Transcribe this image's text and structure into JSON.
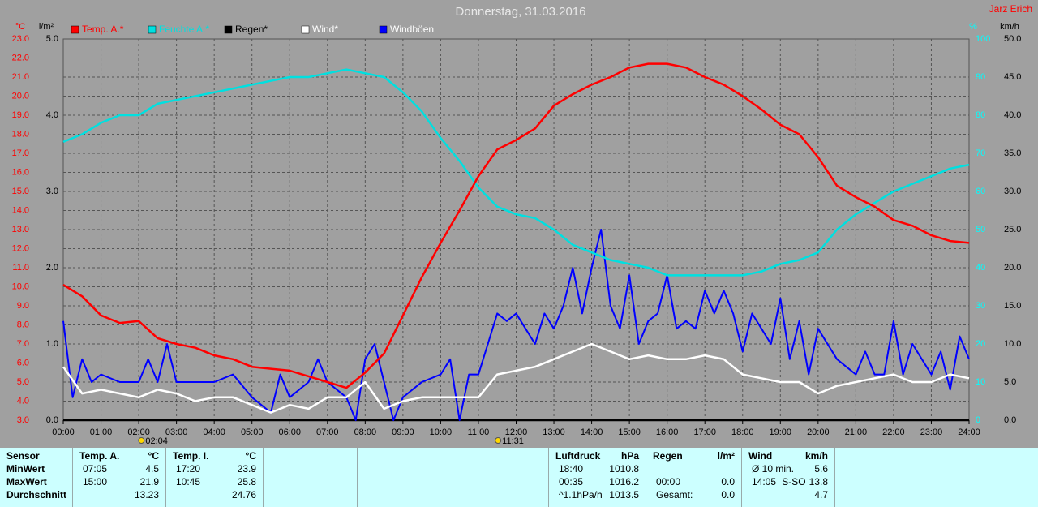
{
  "chart_data": {
    "type": "line",
    "title": "Donnerstag, 31.03.2016",
    "author": "Jarz Erich",
    "xlim": [
      0,
      24
    ],
    "xticks": [
      {
        "value": 0,
        "label": "00:00"
      },
      {
        "value": 1,
        "label": "01:00"
      },
      {
        "value": 2,
        "label": "02:00"
      },
      {
        "value": 3,
        "label": "03:00"
      },
      {
        "value": 4,
        "label": "04:00"
      },
      {
        "value": 5,
        "label": "05:00"
      },
      {
        "value": 6,
        "label": "06:00"
      },
      {
        "value": 7,
        "label": "07:00"
      },
      {
        "value": 8,
        "label": "08:00"
      },
      {
        "value": 9,
        "label": "09:00"
      },
      {
        "value": 10,
        "label": "10:00"
      },
      {
        "value": 11,
        "label": "11:00"
      },
      {
        "value": 12,
        "label": "12:00"
      },
      {
        "value": 13,
        "label": "13:00"
      },
      {
        "value": 14,
        "label": "14:00"
      },
      {
        "value": 15,
        "label": "15:00"
      },
      {
        "value": 16,
        "label": "16:00"
      },
      {
        "value": 17,
        "label": "17:00"
      },
      {
        "value": 18,
        "label": "18:00"
      },
      {
        "value": 19,
        "label": "19:00"
      },
      {
        "value": 20,
        "label": "20:00"
      },
      {
        "value": 21,
        "label": "21:00"
      },
      {
        "value": 22,
        "label": "22:00"
      },
      {
        "value": 23,
        "label": "23:00"
      },
      {
        "value": 24,
        "label": "24:00"
      }
    ],
    "grid": true,
    "annotations": [
      {
        "x": 2.07,
        "label": "02:04"
      },
      {
        "x": 11.52,
        "label": "11:31"
      }
    ],
    "axes": [
      {
        "unit": "°C",
        "side": "left",
        "color": "#ff0000",
        "lim": [
          3,
          23
        ],
        "grid": true,
        "ticks": [
          {
            "value": 3,
            "label": "3.0"
          },
          {
            "value": 4,
            "label": "4.0"
          },
          {
            "value": 5,
            "label": "5.0"
          },
          {
            "value": 6,
            "label": "6.0"
          },
          {
            "value": 7,
            "label": "7.0"
          },
          {
            "value": 8,
            "label": "8.0"
          },
          {
            "value": 9,
            "label": "9.0"
          },
          {
            "value": 10,
            "label": "10.0"
          },
          {
            "value": 11,
            "label": "11.0"
          },
          {
            "value": 12,
            "label": "12.0"
          },
          {
            "value": 13,
            "label": "13.0"
          },
          {
            "value": 14,
            "label": "14.0"
          },
          {
            "value": 15,
            "label": "15.0"
          },
          {
            "value": 16,
            "label": "16.0"
          },
          {
            "value": 17,
            "label": "17.0"
          },
          {
            "value": 18,
            "label": "18.0"
          },
          {
            "value": 19,
            "label": "19.0"
          },
          {
            "value": 20,
            "label": "20.0"
          },
          {
            "value": 21,
            "label": "21.0"
          },
          {
            "value": 22,
            "label": "22.0"
          },
          {
            "value": 23,
            "label": "23.0"
          }
        ]
      },
      {
        "unit": "l/m²",
        "side": "left",
        "color": "#000000",
        "lim": [
          0,
          5
        ],
        "grid": false,
        "ticks": [
          {
            "value": 0,
            "label": "0.0"
          },
          {
            "value": 1,
            "label": "1.0"
          },
          {
            "value": 2,
            "label": "2.0"
          },
          {
            "value": 3,
            "label": "3.0"
          },
          {
            "value": 4,
            "label": "4.0"
          },
          {
            "value": 5,
            "label": "5.0"
          }
        ]
      },
      {
        "unit": "%",
        "side": "right",
        "color": "#00ffff",
        "lim": [
          0,
          100
        ],
        "grid": false,
        "ticks": [
          0,
          10,
          20,
          30,
          40,
          50,
          60,
          70,
          80,
          90,
          100
        ]
      },
      {
        "unit": "km/h",
        "side": "right",
        "color": "#000000",
        "lim": [
          0,
          50
        ],
        "grid": false,
        "ticks": [
          {
            "value": 0,
            "label": "0.0"
          },
          {
            "value": 5,
            "label": "5.0"
          },
          {
            "value": 10,
            "label": "10.0"
          },
          {
            "value": 15,
            "label": "15.0"
          },
          {
            "value": 20,
            "label": "20.0"
          },
          {
            "value": 25,
            "label": "25.0"
          },
          {
            "value": 30,
            "label": "30.0"
          },
          {
            "value": 35,
            "label": "35.0"
          },
          {
            "value": 40,
            "label": "40.0"
          },
          {
            "value": 45,
            "label": "45.0"
          },
          {
            "value": 50,
            "label": "50.0"
          }
        ]
      }
    ],
    "series": [
      {
        "name": "Temp. A.*",
        "color": "#ff0000",
        "axis": 0,
        "x": [
          0,
          0.5,
          1,
          1.5,
          2,
          2.5,
          3,
          3.5,
          4,
          4.5,
          5,
          5.5,
          6,
          6.5,
          7,
          7.5,
          8,
          8.5,
          9,
          9.5,
          10,
          10.5,
          11,
          11.5,
          12,
          12.5,
          13,
          13.5,
          14,
          14.5,
          15,
          15.5,
          16,
          16.5,
          17,
          17.5,
          18,
          18.5,
          19,
          19.5,
          20,
          20.5,
          21,
          21.5,
          22,
          22.5,
          23,
          23.5,
          24
        ],
        "values": [
          10.1,
          9.5,
          8.5,
          8.1,
          8.2,
          7.3,
          7.0,
          6.8,
          6.4,
          6.2,
          5.8,
          5.7,
          5.6,
          5.3,
          5.0,
          4.7,
          5.5,
          6.5,
          8.5,
          10.5,
          12.3,
          14.0,
          15.8,
          17.2,
          17.7,
          18.3,
          19.5,
          20.1,
          20.6,
          21.0,
          21.5,
          21.7,
          21.7,
          21.5,
          21.0,
          20.6,
          20.0,
          19.3,
          18.5,
          18.0,
          16.8,
          15.3,
          14.7,
          14.2,
          13.5,
          13.2,
          12.7,
          12.4,
          12.3
        ]
      },
      {
        "name": "Feuchte A.*",
        "color": "#00e0e0",
        "axis": 2,
        "x": [
          0,
          0.5,
          1,
          1.5,
          2,
          2.5,
          3,
          3.5,
          4,
          4.5,
          5,
          5.5,
          6,
          6.5,
          7,
          7.5,
          8,
          8.5,
          9,
          9.5,
          10,
          10.5,
          11,
          11.5,
          12,
          12.5,
          13,
          13.5,
          14,
          14.5,
          15,
          15.5,
          16,
          16.5,
          17,
          17.5,
          18,
          18.5,
          19,
          19.5,
          20,
          20.5,
          21,
          21.5,
          22,
          22.5,
          23,
          23.5,
          24
        ],
        "values": [
          73,
          75,
          78,
          80,
          80,
          83,
          84,
          85,
          86,
          87,
          88,
          89,
          90,
          90,
          91,
          92,
          91,
          90,
          86,
          81,
          74,
          68,
          61,
          56,
          54,
          53,
          50,
          46,
          44,
          42,
          41,
          40,
          38,
          38,
          38,
          38,
          38,
          39,
          41,
          42,
          44,
          50,
          54,
          57,
          60,
          62,
          64,
          66,
          67
        ]
      },
      {
        "name": "Regen*",
        "color": "#000000",
        "axis": 1,
        "x": [
          0,
          24
        ],
        "values": [
          0,
          0
        ]
      },
      {
        "name": "Wind*",
        "color": "#ffffff",
        "axis": 3,
        "x": [
          0,
          0.5,
          1,
          1.5,
          2,
          2.5,
          3,
          3.5,
          4,
          4.5,
          5,
          5.5,
          6,
          6.5,
          7,
          7.5,
          8,
          8.5,
          9,
          9.5,
          10,
          10.5,
          11,
          11.5,
          12,
          12.5,
          13,
          13.5,
          14,
          14.5,
          15,
          15.5,
          16,
          16.5,
          17,
          17.5,
          18,
          18.5,
          19,
          19.5,
          20,
          20.5,
          21,
          21.5,
          22,
          22.5,
          23,
          23.5,
          24
        ],
        "values": [
          7,
          3.5,
          4,
          3.5,
          3,
          4,
          3.5,
          2.5,
          3,
          3,
          2,
          1,
          2,
          1.5,
          3,
          3,
          5,
          1.5,
          2.5,
          3,
          3,
          3,
          3,
          6,
          6.5,
          7,
          8,
          9,
          10,
          9,
          8,
          8.5,
          8,
          8,
          8.5,
          8,
          6,
          5.5,
          5,
          5,
          3.5,
          4.5,
          5,
          5.5,
          6,
          5,
          5,
          6,
          5.5
        ]
      },
      {
        "name": "Windböen",
        "color": "#0000ff",
        "axis": 3,
        "x": [
          0,
          0.25,
          0.5,
          0.75,
          1,
          1.5,
          2,
          2.25,
          2.5,
          2.75,
          3,
          3.5,
          4,
          4.5,
          5,
          5.5,
          5.75,
          6,
          6.5,
          6.75,
          7,
          7.5,
          7.75,
          8,
          8.25,
          8.5,
          8.75,
          9,
          9.5,
          10,
          10.25,
          10.5,
          10.75,
          11,
          11.25,
          11.5,
          11.75,
          12,
          12.25,
          12.5,
          12.75,
          13,
          13.25,
          13.5,
          13.75,
          14,
          14.25,
          14.5,
          14.75,
          15,
          15.25,
          15.5,
          15.75,
          16,
          16.25,
          16.5,
          16.75,
          17,
          17.25,
          17.5,
          17.75,
          18,
          18.25,
          18.5,
          18.75,
          19,
          19.25,
          19.5,
          19.75,
          20,
          20.5,
          21,
          21.25,
          21.5,
          21.75,
          22,
          22.25,
          22.5,
          22.75,
          23,
          23.25,
          23.5,
          23.75,
          24
        ],
        "values": [
          13,
          3,
          8,
          5,
          6,
          5,
          5,
          8,
          5,
          10,
          5,
          5,
          5,
          6,
          3,
          1,
          6,
          3,
          5,
          8,
          5,
          3,
          0,
          8,
          10,
          5,
          0,
          3,
          5,
          6,
          8,
          0,
          6,
          6,
          10,
          14,
          13,
          14,
          12,
          10,
          14,
          12,
          15,
          20,
          14,
          20,
          25,
          15,
          12,
          19,
          10,
          13,
          14,
          19,
          12,
          13,
          12,
          17,
          14,
          17,
          14,
          9,
          14,
          12,
          10,
          16,
          8,
          13,
          6,
          12,
          8,
          6,
          9,
          6,
          6,
          13,
          6,
          10,
          8,
          6,
          9,
          4,
          11,
          8
        ]
      }
    ]
  },
  "stats": {
    "panels": [
      {
        "title": "Sensor",
        "rows": [
          {
            "label": "MinWert"
          },
          {
            "label": "MaxWert"
          },
          {
            "label": "Durchschnitt"
          }
        ]
      },
      {
        "title": "Temp. A.",
        "unit": "°C",
        "rows": [
          {
            "time": "07:05",
            "value": "4.5"
          },
          {
            "time": "15:00",
            "value": "21.9"
          },
          {
            "value": "13.23"
          }
        ]
      },
      {
        "title": "Temp. I.",
        "unit": "°C",
        "rows": [
          {
            "time": "17:20",
            "value": "23.9"
          },
          {
            "time": "10:45",
            "value": "25.8"
          },
          {
            "value": "24.76"
          }
        ]
      },
      {
        "rows": []
      },
      {
        "rows": []
      },
      {
        "rows": []
      },
      {
        "title": "Luftdruck",
        "unit": "hPa",
        "rows": [
          {
            "time": "18:40",
            "value": "1010.8"
          },
          {
            "time": "00:35",
            "value": "1016.2"
          },
          {
            "time": "^1.1hPa/h",
            "value": "1013.5"
          }
        ]
      },
      {
        "title": "Regen",
        "unit": "l/m²",
        "rows": [
          {},
          {
            "time": "00:00",
            "value": "0.0"
          },
          {
            "time": "Gesamt:",
            "value": "0.0"
          }
        ]
      },
      {
        "title": "Wind",
        "unit": "km/h",
        "rows": [
          {
            "time": "Ø 10 min.",
            "value": "5.6"
          },
          {
            "time": "14:05",
            "dir": "S-SO",
            "value": "13.8"
          },
          {
            "value": "4.7"
          }
        ]
      }
    ]
  }
}
